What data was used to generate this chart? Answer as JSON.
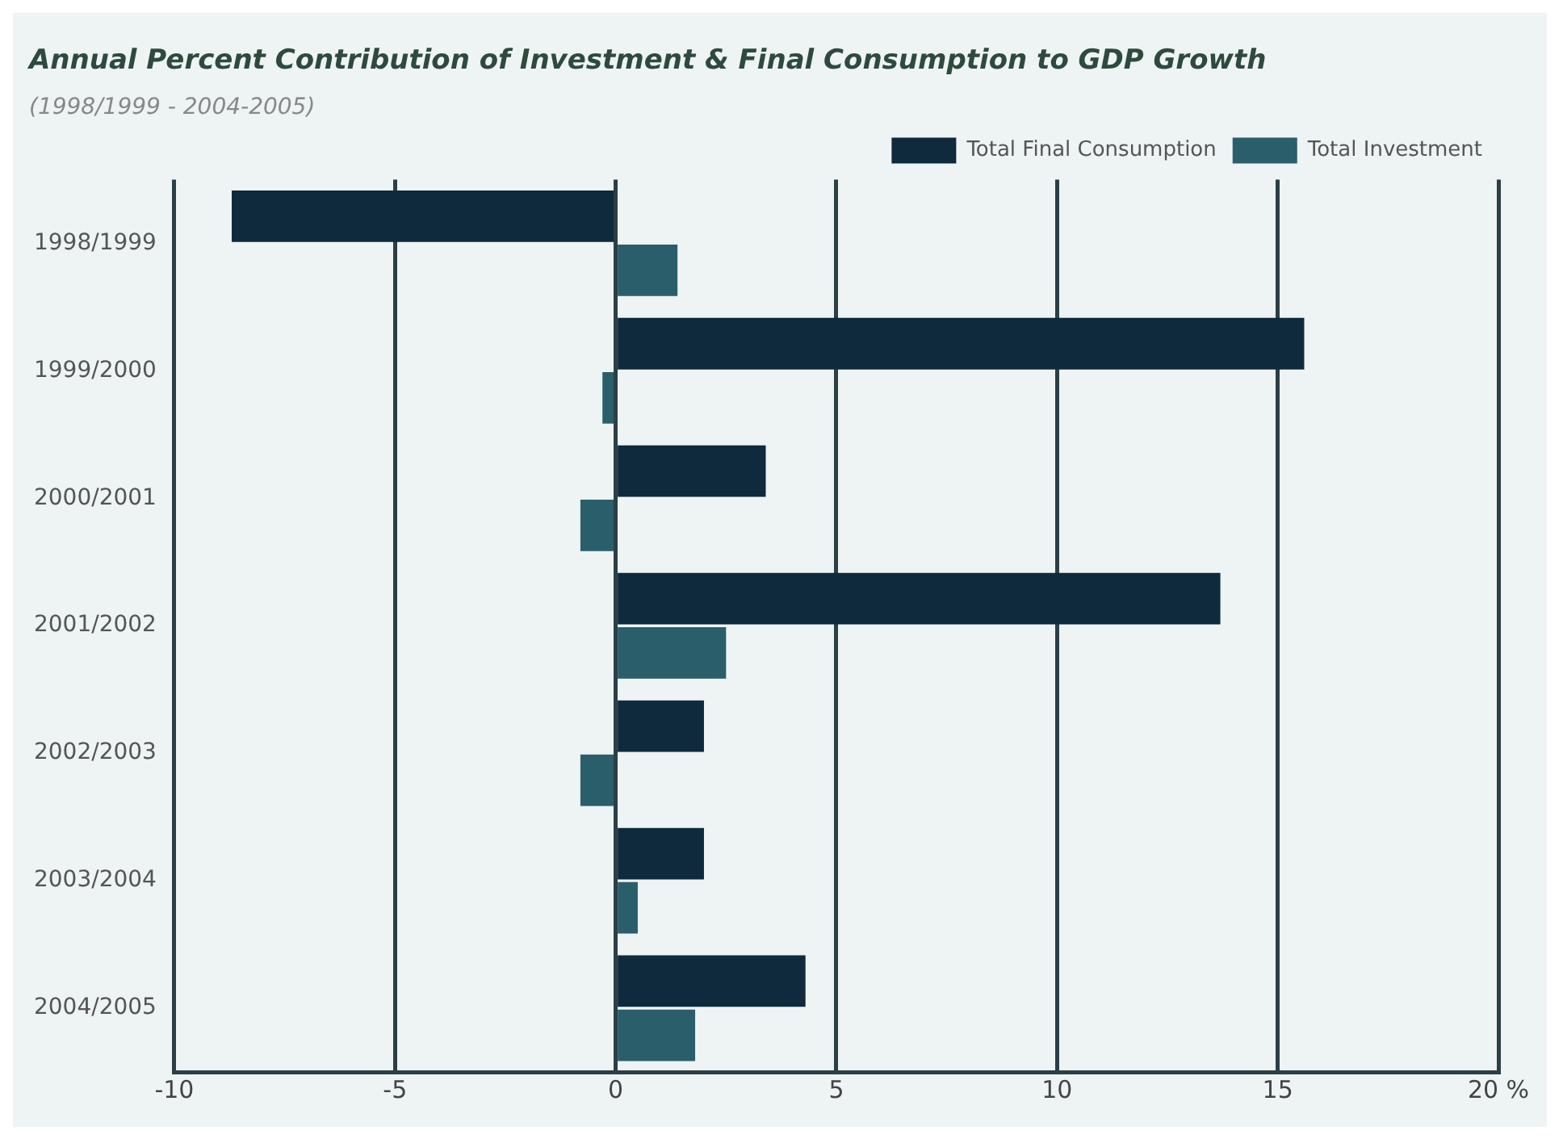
{
  "chart_data": {
    "type": "bar",
    "orientation": "horizontal",
    "title": "Annual Percent Contribution of Investment & Final Consumption to GDP Growth",
    "subtitle": "(1998/1999 - 2004-2005)",
    "categories": [
      "1998/1999",
      "1999/2000",
      "2000/2001",
      "2001/2002",
      "2002/2003",
      "2003/2004",
      "2004/2005"
    ],
    "series": [
      {
        "name": "Total Final Consumption",
        "color": "#0e2a3c",
        "values": [
          -8.7,
          15.6,
          3.4,
          13.7,
          2.0,
          2.0,
          4.3
        ]
      },
      {
        "name": "Total Investment",
        "color": "#2a5e6a",
        "values": [
          1.4,
          -0.3,
          -0.8,
          2.5,
          -0.8,
          0.5,
          1.8
        ]
      }
    ],
    "xlim": [
      -10,
      20
    ],
    "xticks": [
      -10,
      -5,
      0,
      5,
      10,
      15,
      {
        "value": 20,
        "label": "20 %"
      }
    ],
    "grid": "x",
    "legend": "top right"
  }
}
